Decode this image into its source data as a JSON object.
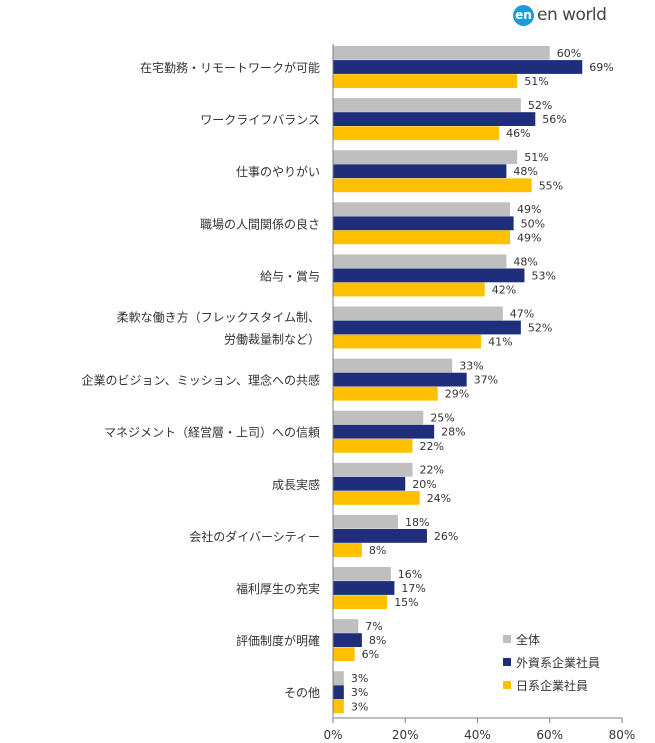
{
  "logo": {
    "mark_text": "en",
    "word_text": "en world",
    "mark_color": "#1e9ad6",
    "word_color": "#444444"
  },
  "colors": {
    "all": "#bfbfbf",
    "foreign": "#1f2e7a",
    "japanese": "#ffc000",
    "axis": "#7f7f7f",
    "text": "#333333"
  },
  "chart_data": {
    "type": "bar",
    "orientation": "horizontal",
    "categories": [
      [
        "在宅勤務・リモートワークが可能"
      ],
      [
        "ワークライフバランス"
      ],
      [
        "仕事のやりがい"
      ],
      [
        "職場の人間関係の良さ"
      ],
      [
        "給与・賞与"
      ],
      [
        "柔軟な働き方（フレックスタイム制、",
        "労働裁量制など）"
      ],
      [
        "企業のビジョン、ミッション、理念への共感"
      ],
      [
        "マネジメント（経営層・上司）への信頼"
      ],
      [
        "成長実感"
      ],
      [
        "会社のダイバーシティー"
      ],
      [
        "福利厚生の充実"
      ],
      [
        "評価制度が明確"
      ],
      [
        "その他"
      ]
    ],
    "series": [
      {
        "name": "全体",
        "color": "#bfbfbf",
        "values": [
          60,
          52,
          51,
          49,
          48,
          47,
          33,
          25,
          22,
          18,
          16,
          7,
          3
        ]
      },
      {
        "name": "外資系企業社員",
        "color": "#1f2e7a",
        "values": [
          69,
          56,
          48,
          50,
          53,
          52,
          37,
          28,
          20,
          26,
          17,
          8,
          3
        ]
      },
      {
        "name": "日系企業社員",
        "color": "#ffc000",
        "values": [
          51,
          46,
          55,
          49,
          42,
          41,
          29,
          22,
          24,
          8,
          15,
          6,
          3
        ]
      }
    ],
    "xlim": [
      0,
      80
    ],
    "xticks": [
      0,
      20,
      40,
      60,
      80
    ],
    "value_suffix": "%",
    "legend_position": "bottom-right",
    "grid": false
  }
}
